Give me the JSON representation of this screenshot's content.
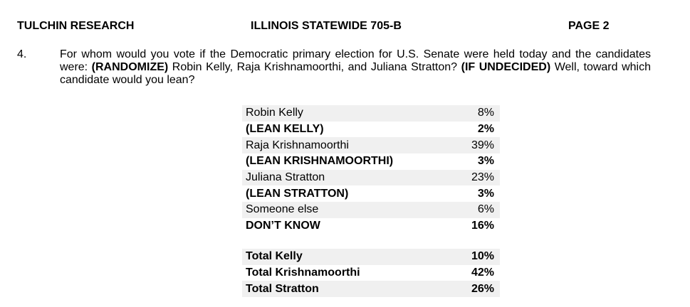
{
  "header": {
    "left": "TULCHIN RESEARCH",
    "center": "ILLINOIS STATEWIDE 705-B",
    "right": "PAGE 2"
  },
  "question": {
    "number": "4.",
    "parts": [
      "For whom would you vote if the Democratic primary election for U.S. Senate were held today and the candidates were:",
      "(RANDOMIZE)",
      "Robin Kelly, Raja Krishnamoorthi, and Juliana Stratton?",
      "(IF UNDECIDED)",
      "Well, toward which candidate would you lean?"
    ]
  },
  "table": {
    "rows": [
      [
        "Robin Kelly",
        "8%"
      ],
      [
        "(LEAN KELLY)",
        "2%"
      ],
      [
        "Raja Krishnamoorthi",
        "39%"
      ],
      [
        "(LEAN KRISHNAMOORTHI)",
        "3%"
      ],
      [
        "Juliana Stratton",
        "23%"
      ],
      [
        "(LEAN STRATTON)",
        "3%"
      ],
      [
        "Someone else",
        "6%"
      ],
      [
        "DON’T KNOW",
        "16%"
      ]
    ],
    "totals": [
      [
        "Total Kelly",
        "10%"
      ],
      [
        "Total Krishnamoorthi",
        "42%"
      ],
      [
        "Total Stratton",
        "26%"
      ]
    ]
  }
}
